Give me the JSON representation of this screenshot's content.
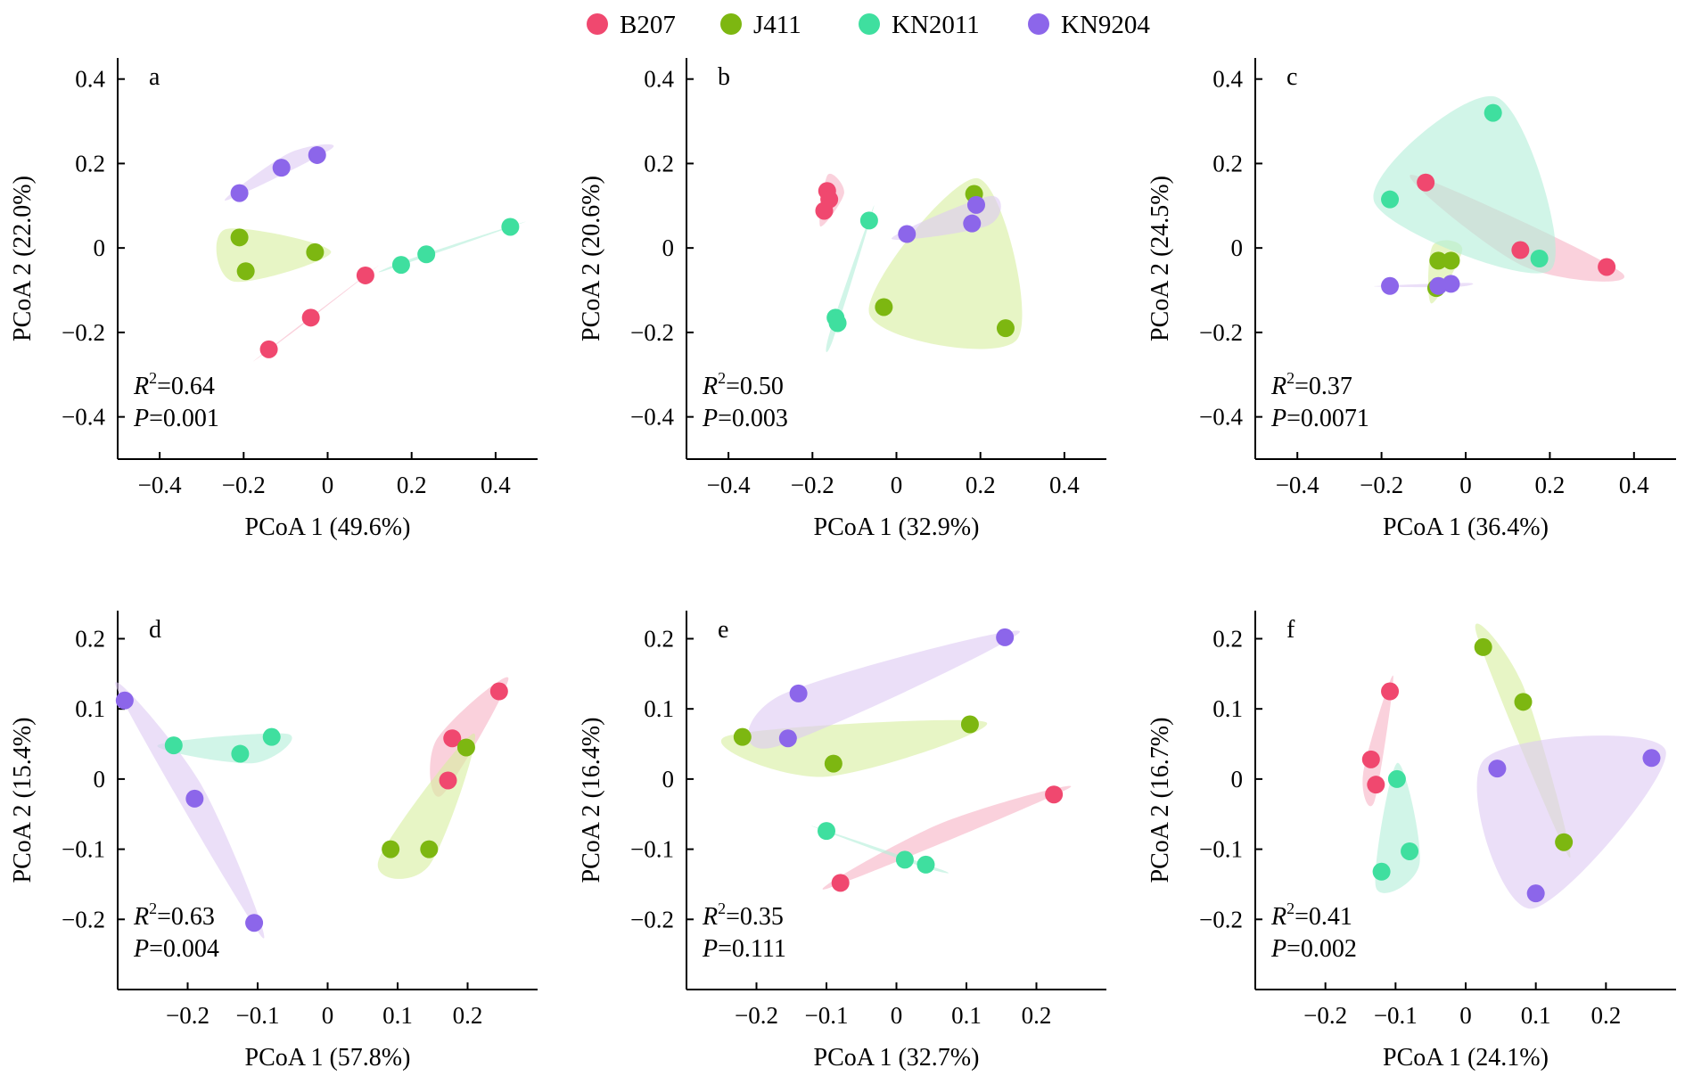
{
  "legend": [
    {
      "name": "B207",
      "color": "#f0486f"
    },
    {
      "name": "J411",
      "color": "#7db711"
    },
    {
      "name": "KN2011",
      "color": "#3fdf9f"
    },
    {
      "name": "KN9204",
      "color": "#8c66ea"
    }
  ],
  "hull_colors": {
    "B207": "#f6b2c4",
    "J411": "#d7ee9e",
    "KN2011": "#b3efd9",
    "KN9204": "#ddc9f3"
  },
  "chart_data": [
    {
      "type": "scatter",
      "panel": "a",
      "xlabel": "PCoA 1 (49.6%)",
      "ylabel": "PCoA 2 (22.0%)",
      "xlim": [
        -0.5,
        0.5
      ],
      "ylim": [
        -0.5,
        0.45
      ],
      "xticks": [
        -0.4,
        -0.2,
        0,
        0.2,
        0.4
      ],
      "yticks": [
        -0.4,
        -0.2,
        0,
        0.2,
        0.4
      ],
      "xtick_labels": [
        "−0.4",
        "−0.2",
        "0",
        "0.2",
        "0.4"
      ],
      "ytick_labels": [
        "−0.4",
        "−0.2",
        "0",
        "0.2",
        "0.4"
      ],
      "r2": "0.64",
      "p": "0.001",
      "series": [
        {
          "name": "B207",
          "points": [
            [
              0.09,
              -0.065
            ],
            [
              -0.04,
              -0.165
            ],
            [
              -0.14,
              -0.24
            ]
          ]
        },
        {
          "name": "J411",
          "points": [
            [
              -0.21,
              0.025
            ],
            [
              -0.195,
              -0.055
            ],
            [
              -0.03,
              -0.01
            ]
          ]
        },
        {
          "name": "KN2011",
          "points": [
            [
              0.175,
              -0.04
            ],
            [
              0.235,
              -0.015
            ],
            [
              0.435,
              0.05
            ]
          ]
        },
        {
          "name": "KN9204",
          "points": [
            [
              -0.21,
              0.13
            ],
            [
              -0.11,
              0.19
            ],
            [
              -0.025,
              0.22
            ]
          ]
        }
      ]
    },
    {
      "type": "scatter",
      "panel": "b",
      "xlabel": "PCoA 1 (32.9%)",
      "ylabel": "PCoA 2 (20.6%)",
      "xlim": [
        -0.5,
        0.5
      ],
      "ylim": [
        -0.5,
        0.45
      ],
      "xticks": [
        -0.4,
        -0.2,
        0,
        0.2,
        0.4
      ],
      "yticks": [
        -0.4,
        -0.2,
        0,
        0.2,
        0.4
      ],
      "xtick_labels": [
        "−0.4",
        "−0.2",
        "0",
        "0.2",
        "0.4"
      ],
      "ytick_labels": [
        "−0.4",
        "−0.2",
        "0",
        "0.2",
        "0.4"
      ],
      "r2": "0.50",
      "p": "0.003",
      "series": [
        {
          "name": "B207",
          "points": [
            [
              -0.165,
              0.135
            ],
            [
              -0.16,
              0.115
            ],
            [
              -0.172,
              0.088
            ]
          ]
        },
        {
          "name": "J411",
          "points": [
            [
              0.185,
              0.128
            ],
            [
              -0.03,
              -0.14
            ],
            [
              0.26,
              -0.19
            ]
          ]
        },
        {
          "name": "KN2011",
          "points": [
            [
              -0.065,
              0.065
            ],
            [
              -0.145,
              -0.165
            ],
            [
              -0.14,
              -0.178
            ]
          ]
        },
        {
          "name": "KN9204",
          "points": [
            [
              0.025,
              0.033
            ],
            [
              0.18,
              0.058
            ],
            [
              0.19,
              0.102
            ]
          ]
        }
      ]
    },
    {
      "type": "scatter",
      "panel": "c",
      "xlabel": "PCoA 1 (36.4%)",
      "ylabel": "PCoA 2 (24.5%)",
      "xlim": [
        -0.5,
        0.5
      ],
      "ylim": [
        -0.5,
        0.45
      ],
      "xticks": [
        -0.4,
        -0.2,
        0,
        0.2,
        0.4
      ],
      "yticks": [
        -0.4,
        -0.2,
        0,
        0.2,
        0.4
      ],
      "xtick_labels": [
        "−0.4",
        "−0.2",
        "0",
        "0.2",
        "0.4"
      ],
      "ytick_labels": [
        "−0.4",
        "−0.2",
        "0",
        "0.2",
        "0.4"
      ],
      "r2": "0.37",
      "p": "0.0071",
      "series": [
        {
          "name": "B207",
          "points": [
            [
              -0.095,
              0.155
            ],
            [
              0.13,
              -0.005
            ],
            [
              0.335,
              -0.045
            ]
          ]
        },
        {
          "name": "J411",
          "points": [
            [
              -0.065,
              -0.03
            ],
            [
              -0.035,
              -0.03
            ],
            [
              -0.07,
              -0.095
            ]
          ]
        },
        {
          "name": "KN2011",
          "points": [
            [
              0.065,
              0.32
            ],
            [
              -0.18,
              0.115
            ],
            [
              0.175,
              -0.025
            ]
          ]
        },
        {
          "name": "KN9204",
          "points": [
            [
              -0.18,
              -0.09
            ],
            [
              -0.065,
              -0.09
            ],
            [
              -0.035,
              -0.085
            ]
          ]
        }
      ]
    },
    {
      "type": "scatter",
      "panel": "d",
      "xlabel": "PCoA 1 (57.8%)",
      "ylabel": "PCoA 2 (15.4%)",
      "xlim": [
        -0.3,
        0.3
      ],
      "ylim": [
        -0.3,
        0.24
      ],
      "xticks": [
        -0.2,
        -0.1,
        0,
        0.1,
        0.2
      ],
      "yticks": [
        -0.2,
        -0.1,
        0,
        0.1,
        0.2
      ],
      "xtick_labels": [
        "−0.2",
        "−0.1",
        "0",
        "0.1",
        "0.2"
      ],
      "ytick_labels": [
        "−0.2",
        "−0.1",
        "0",
        "0.1",
        "0.2"
      ],
      "r2": "0.63",
      "p": "0.004",
      "series": [
        {
          "name": "B207",
          "points": [
            [
              0.245,
              0.125
            ],
            [
              0.178,
              0.058
            ],
            [
              0.172,
              -0.002
            ]
          ]
        },
        {
          "name": "J411",
          "points": [
            [
              0.198,
              0.045
            ],
            [
              0.09,
              -0.1
            ],
            [
              0.145,
              -0.1
            ]
          ]
        },
        {
          "name": "KN2011",
          "points": [
            [
              -0.22,
              0.048
            ],
            [
              -0.125,
              0.036
            ],
            [
              -0.08,
              0.06
            ]
          ]
        },
        {
          "name": "KN9204",
          "points": [
            [
              -0.29,
              0.112
            ],
            [
              -0.19,
              -0.028
            ],
            [
              -0.105,
              -0.205
            ]
          ]
        }
      ]
    },
    {
      "type": "scatter",
      "panel": "e",
      "xlabel": "PCoA 1 (32.7%)",
      "ylabel": "PCoA 2 (16.4%)",
      "xlim": [
        -0.3,
        0.3
      ],
      "ylim": [
        -0.3,
        0.24
      ],
      "xticks": [
        -0.2,
        -0.1,
        0,
        0.1,
        0.2
      ],
      "yticks": [
        -0.2,
        -0.1,
        0,
        0.1,
        0.2
      ],
      "xtick_labels": [
        "−0.2",
        "−0.1",
        "0",
        "0.1",
        "0.2"
      ],
      "ytick_labels": [
        "−0.2",
        "−0.1",
        "0",
        "0.1",
        "0.2"
      ],
      "r2": "0.35",
      "p": "0.111",
      "series": [
        {
          "name": "B207",
          "points": [
            [
              0.225,
              -0.022
            ],
            [
              -0.08,
              -0.148
            ]
          ]
        },
        {
          "name": "J411",
          "points": [
            [
              -0.22,
              0.06
            ],
            [
              -0.09,
              0.022
            ],
            [
              0.105,
              0.078
            ]
          ]
        },
        {
          "name": "KN2011",
          "points": [
            [
              -0.1,
              -0.074
            ],
            [
              0.012,
              -0.115
            ],
            [
              0.042,
              -0.122
            ]
          ]
        },
        {
          "name": "KN9204",
          "points": [
            [
              -0.14,
              0.122
            ],
            [
              -0.155,
              0.058
            ],
            [
              0.155,
              0.202
            ]
          ]
        }
      ]
    },
    {
      "type": "scatter",
      "panel": "f",
      "xlabel": "PCoA 1 (24.1%)",
      "ylabel": "PCoA 2 (16.7%)",
      "xlim": [
        -0.3,
        0.3
      ],
      "ylim": [
        -0.3,
        0.24
      ],
      "xticks": [
        -0.2,
        -0.1,
        0,
        0.1,
        0.2
      ],
      "yticks": [
        -0.2,
        -0.1,
        0,
        0.1,
        0.2
      ],
      "xtick_labels": [
        "−0.2",
        "−0.1",
        "0",
        "0.1",
        "0.2"
      ],
      "ytick_labels": [
        "−0.2",
        "−0.1",
        "0",
        "0.1",
        "0.2"
      ],
      "r2": "0.41",
      "p": "0.002",
      "series": [
        {
          "name": "B207",
          "points": [
            [
              -0.108,
              0.125
            ],
            [
              -0.135,
              0.028
            ],
            [
              -0.128,
              -0.008
            ]
          ]
        },
        {
          "name": "J411",
          "points": [
            [
              0.025,
              0.188
            ],
            [
              0.082,
              0.11
            ],
            [
              0.14,
              -0.09
            ]
          ]
        },
        {
          "name": "KN2011",
          "points": [
            [
              -0.098,
              0.0
            ],
            [
              -0.08,
              -0.103
            ],
            [
              -0.12,
              -0.132
            ]
          ]
        },
        {
          "name": "KN9204",
          "points": [
            [
              0.045,
              0.015
            ],
            [
              0.265,
              0.03
            ],
            [
              0.1,
              -0.163
            ]
          ]
        }
      ]
    }
  ]
}
